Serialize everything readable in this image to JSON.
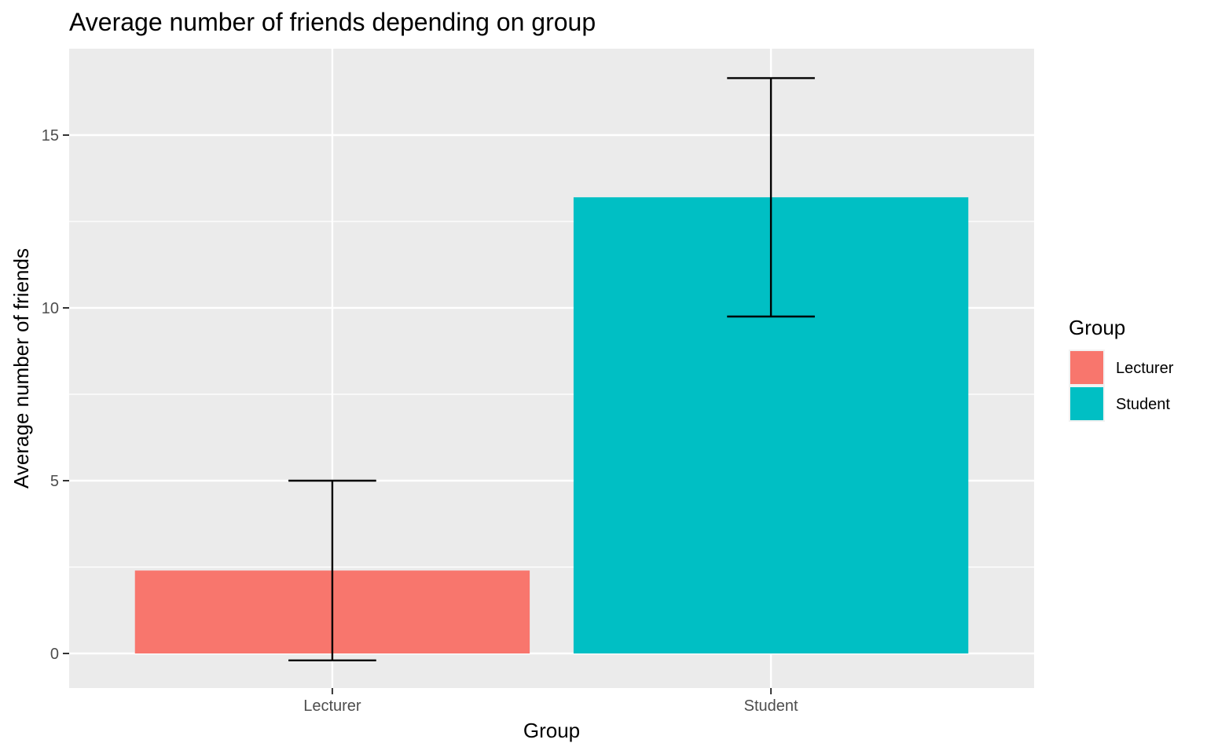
{
  "chart_data": {
    "type": "bar",
    "title": "Average number of friends depending on group",
    "xlabel": "Group",
    "ylabel": "Average number of friends",
    "categories": [
      "Lecturer",
      "Student"
    ],
    "values": [
      2.4,
      13.2
    ],
    "error_bars": [
      {
        "low": -0.2,
        "high": 5.0
      },
      {
        "low": 9.75,
        "high": 16.65
      }
    ],
    "colors": [
      "#F8766D",
      "#00BFC4"
    ],
    "ylim": [
      -1.0,
      17.5
    ],
    "yticks": [
      0,
      5,
      10,
      15
    ],
    "ytick_labels": [
      "0",
      "5",
      "10",
      "15"
    ],
    "grid": true,
    "legend": {
      "title": "Group",
      "position": "right",
      "entries": [
        "Lecturer",
        "Student"
      ]
    }
  }
}
